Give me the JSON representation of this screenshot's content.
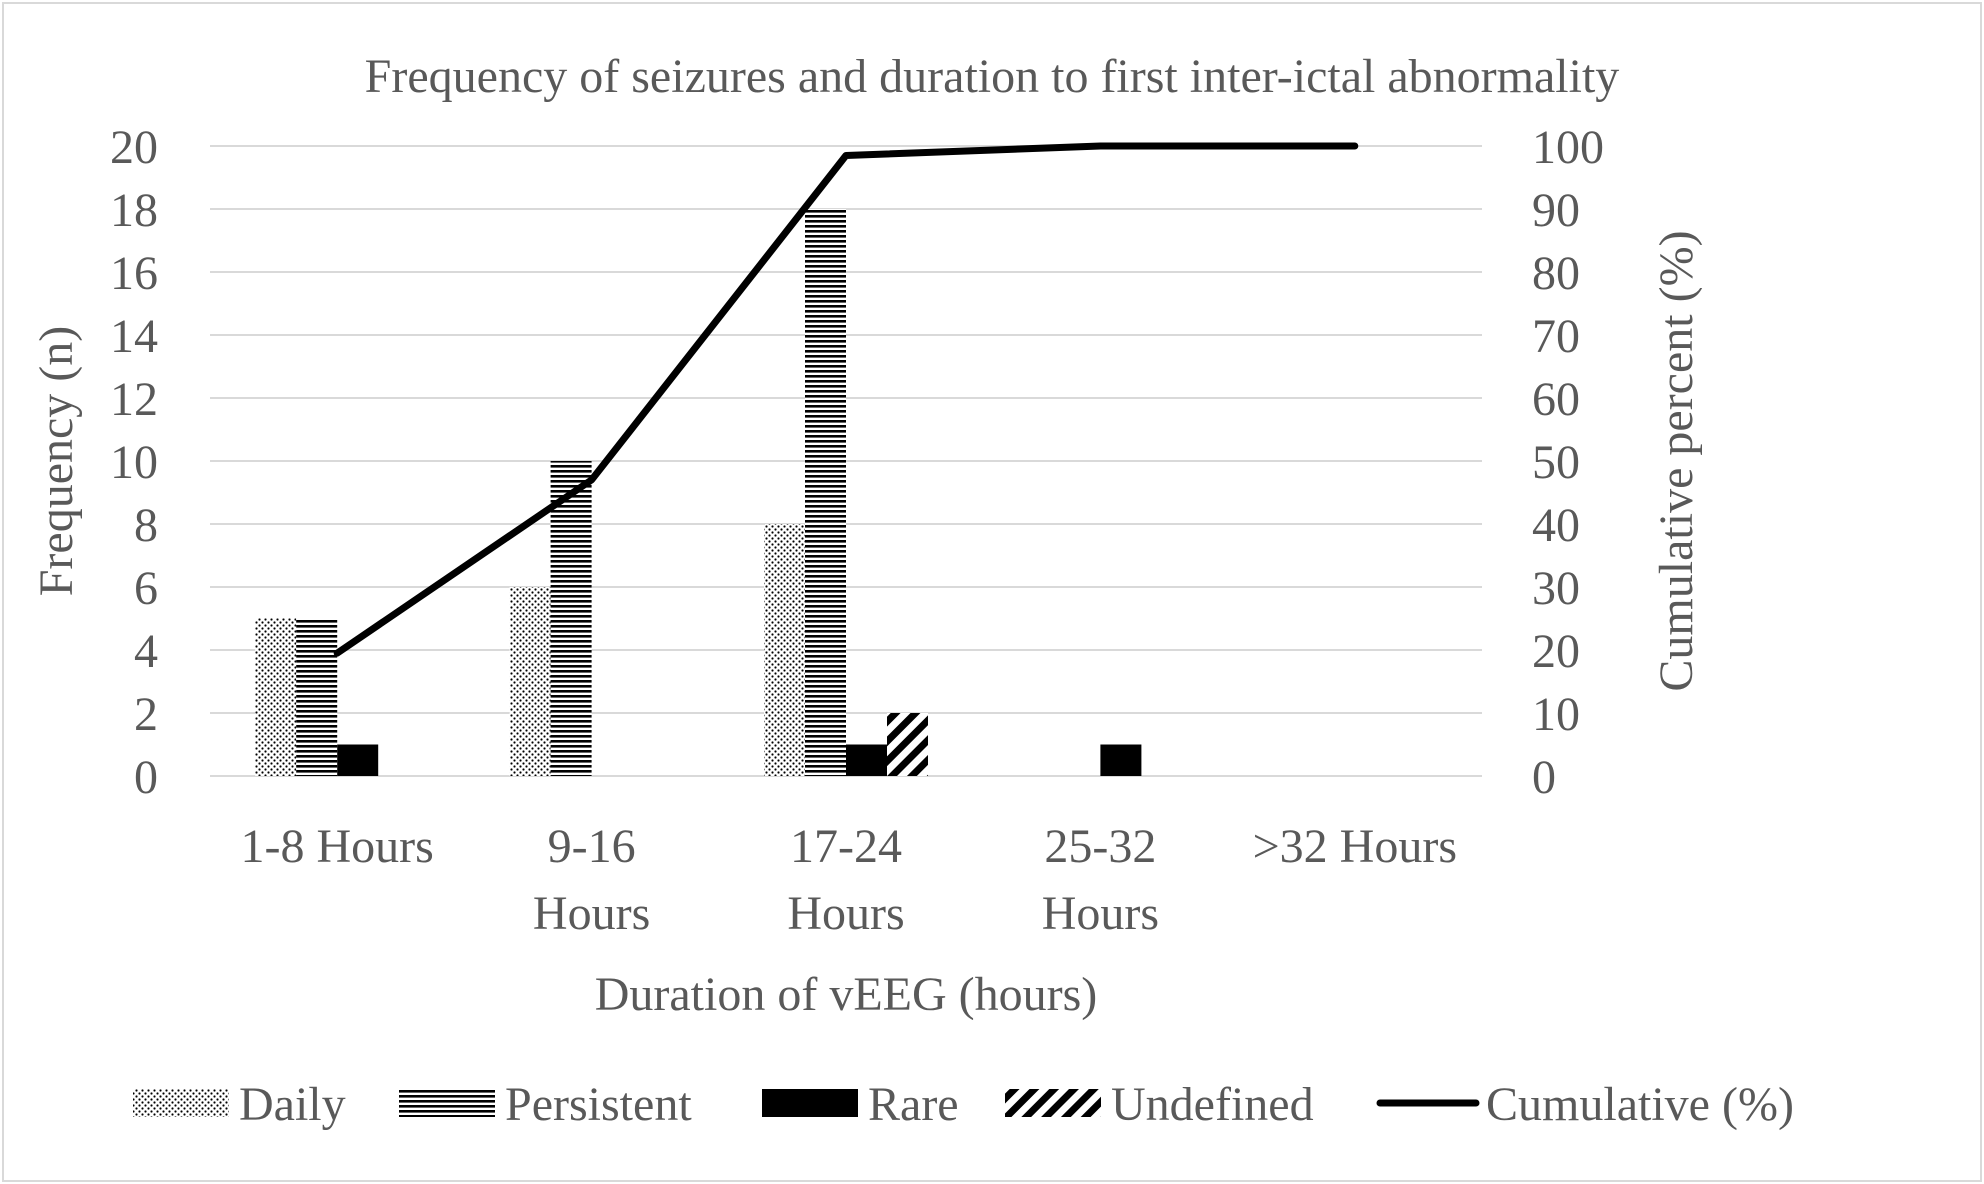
{
  "chart_data": {
    "type": "bar",
    "title": "Frequency of seizures and duration to first inter-ictal abnormality",
    "xlabel": "Duration of vEEG (hours)",
    "ylabel": "Frequency (n)",
    "y2label": "Cumulative percent (%)",
    "categories": [
      [
        "1-8 Hours"
      ],
      [
        "9-16",
        "Hours"
      ],
      [
        "17-24",
        "Hours"
      ],
      [
        "25-32",
        "Hours"
      ],
      [
        ">32 Hours"
      ]
    ],
    "ylim": [
      0,
      20
    ],
    "y_ticks": [
      0,
      2,
      4,
      6,
      8,
      10,
      12,
      14,
      16,
      18,
      20
    ],
    "y2lim": [
      0,
      100
    ],
    "y2_ticks": [
      0,
      10,
      20,
      30,
      40,
      50,
      60,
      70,
      80,
      90,
      100
    ],
    "grid": true,
    "legend_position": "bottom",
    "series": [
      {
        "name": "Daily",
        "kind": "bar",
        "pattern": "dots",
        "values": [
          5,
          6,
          8,
          0,
          0
        ]
      },
      {
        "name": "Persistent",
        "kind": "bar",
        "pattern": "horizontal-lines",
        "values": [
          5,
          10,
          18,
          0,
          0
        ]
      },
      {
        "name": "Rare",
        "kind": "bar",
        "pattern": "solid",
        "values": [
          1,
          0,
          1,
          1,
          0
        ]
      },
      {
        "name": "Undefined",
        "kind": "bar",
        "pattern": "diagonal-stripes",
        "values": [
          0,
          0,
          2,
          0,
          0
        ]
      },
      {
        "name": "Cumulative (%)",
        "kind": "line",
        "axis": "secondary",
        "values": [
          19.5,
          47,
          98.5,
          100,
          100
        ]
      }
    ],
    "colors": {
      "ink": "#000000",
      "text": "#595959",
      "grid": "#d9d9d9",
      "border": "#d9d9d9"
    }
  }
}
